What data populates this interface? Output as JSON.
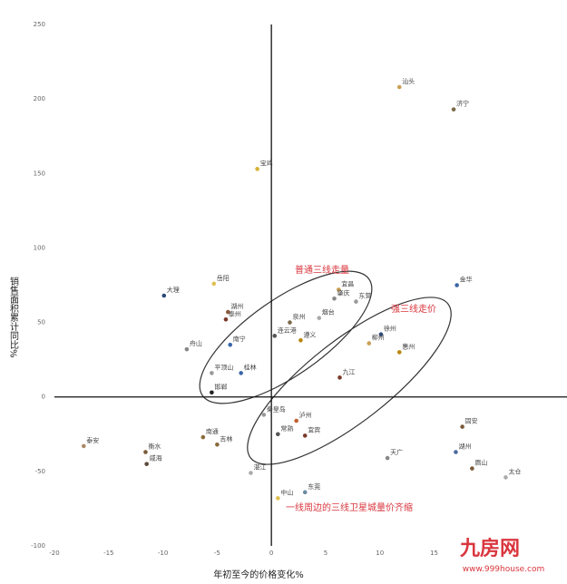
{
  "chart_data": {
    "type": "scatter",
    "x_label": "年初至今的价格变化%",
    "y_label": "销售面积累计同比%",
    "xlim": [
      -20,
      27.5
    ],
    "ylim": [
      -100,
      250
    ],
    "xticks": [
      -20,
      -15,
      -10,
      -5,
      0,
      5,
      10,
      15
    ],
    "yticks": [
      -100,
      -50,
      0,
      50,
      100,
      150,
      200,
      250
    ],
    "annotations": [
      "普通三线走量",
      "强三线走价",
      "一线周边的三线卫星城量价齐缩"
    ],
    "watermark": [
      "九房网",
      "www.999house.com"
    ],
    "series": [
      {
        "point_labels": [
          "汕头",
          "济宁",
          "宝鸡",
          "金华",
          "大理",
          "岳阳",
          "湖州",
          "泰州",
          "宜昌",
          "东营",
          "肇庆",
          "烟台",
          "泉州",
          "遵义",
          "连云港",
          "南宁",
          "舟山",
          "平顶山",
          "桂林",
          "邯郸",
          "徐州",
          "柳州",
          "惠州",
          "九江",
          "秦皇岛",
          "泸州",
          "常熟",
          "宜宾",
          "南通",
          "吉林",
          "衡水",
          "泰安",
          "威海",
          "湛江",
          "东莞",
          "中山",
          "天广",
          "固安",
          "湖州",
          "眉山",
          "太仓"
        ],
        "x": [
          11.8,
          16.8,
          -1.3,
          17.1,
          -9.9,
          -5.3,
          -4.0,
          -4.2,
          6.2,
          7.8,
          5.8,
          4.4,
          1.7,
          2.7,
          0.3,
          -3.8,
          -7.8,
          -5.5,
          -2.8,
          -5.5,
          10.1,
          9.0,
          11.8,
          6.3,
          -0.7,
          2.3,
          0.6,
          3.1,
          -6.3,
          -5.0,
          -11.6,
          -17.3,
          -11.5,
          -1.9,
          3.1,
          0.6,
          10.7,
          17.6,
          17.0,
          18.5,
          21.6
        ],
        "values": [
          208,
          193,
          153,
          75,
          68,
          76,
          57,
          52,
          72,
          64,
          66,
          53,
          50,
          38,
          41,
          35,
          32,
          16,
          16,
          3,
          42,
          36,
          30,
          13,
          -12,
          -16,
          -25,
          -26,
          -27,
          -32,
          -37,
          -33,
          -45,
          -51,
          -64,
          -68,
          -41,
          -20,
          -37,
          -48,
          -54
        ],
        "colors": [
          "#c8a055",
          "#7a6a4a",
          "#d7b23a",
          "#3a66a8",
          "#2f4a7a",
          "#e0c050",
          "#8a5a3a",
          "#7a3a2a",
          "#c8a055",
          "#999999",
          "#888888",
          "#aaaaaa",
          "#7a6a4a",
          "#b8860b",
          "#555555",
          "#3a66a8",
          "#888888",
          "#999999",
          "#3a66a8",
          "#222222",
          "#2f4a7a",
          "#c8a055",
          "#b8860b",
          "#7a3a2a",
          "#999999",
          "#c06030",
          "#555555",
          "#7a3a2a",
          "#8a6a3a",
          "#8a6a3a",
          "#7a5a3a",
          "#aa8866",
          "#5a4a3a",
          "#aaaaaa",
          "#6a8aa0",
          "#e0c050",
          "#888888",
          "#7a5a3a",
          "#4a6aa0",
          "#7a5a3a",
          "#aaaaaa"
        ]
      }
    ]
  }
}
